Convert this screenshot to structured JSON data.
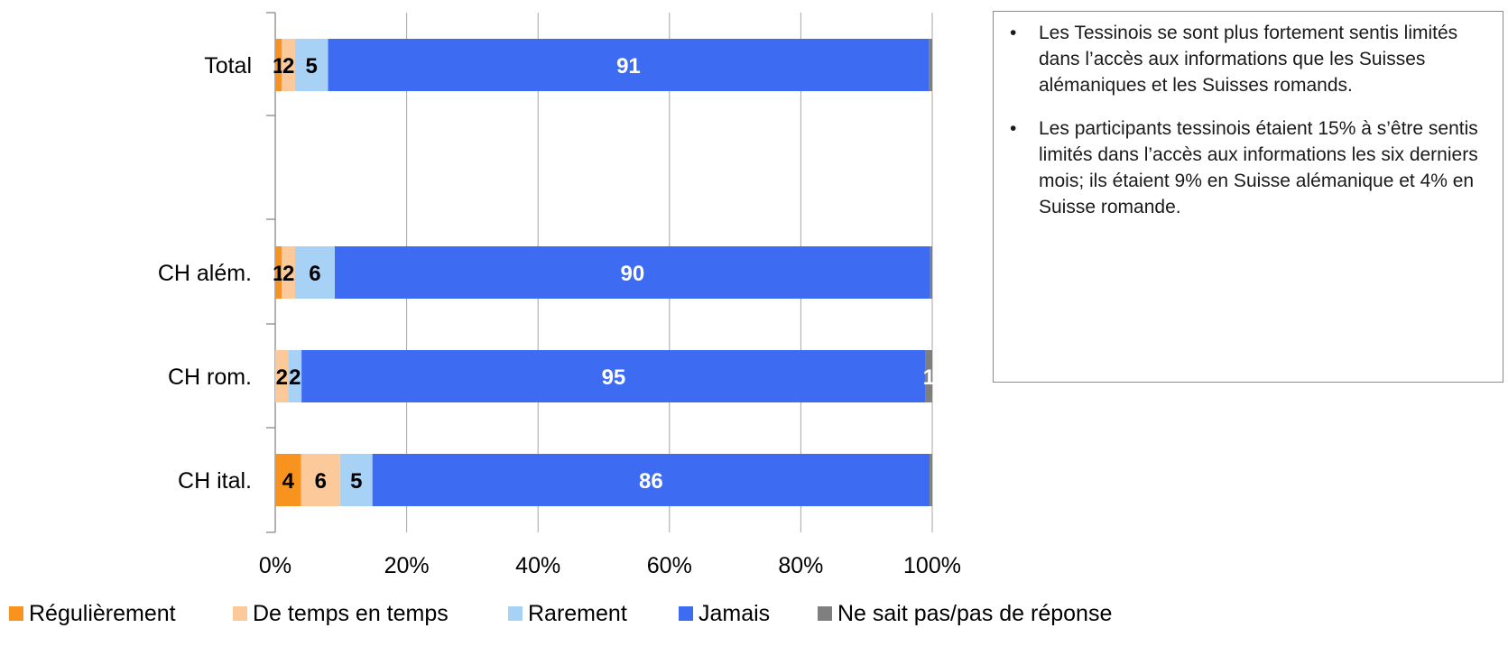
{
  "colors": {
    "Régulièrement": "#f7931e",
    "De temps en temps": "#fbc99a",
    "Rarement": "#a7d1f5",
    "Jamais": "#3d6cf2",
    "Ne sait pas/pas de réponse": "#7f7f7f"
  },
  "chart_data": {
    "type": "bar",
    "orientation": "horizontal",
    "stacked": "percent",
    "title": "",
    "xlabel": "",
    "ylabel": "",
    "xlim": [
      0,
      100
    ],
    "x_ticks": [
      "0%",
      "20%",
      "40%",
      "60%",
      "80%",
      "100%"
    ],
    "grid": true,
    "legend_position": "bottom",
    "categories": [
      "Total",
      "",
      "CH além.",
      "CH rom.",
      "CH ital."
    ],
    "series": [
      {
        "name": "Régulièrement",
        "values": [
          1,
          null,
          1,
          0,
          4
        ],
        "labels": [
          "1",
          "",
          "1",
          "",
          "4"
        ]
      },
      {
        "name": "De temps en temps",
        "values": [
          2,
          null,
          2,
          2,
          6
        ],
        "labels": [
          "2",
          "",
          "2",
          "2",
          "6"
        ]
      },
      {
        "name": "Rarement",
        "values": [
          5,
          null,
          6,
          2,
          5
        ],
        "labels": [
          "5",
          "",
          "6",
          "2",
          "5"
        ]
      },
      {
        "name": "Jamais",
        "values": [
          91,
          null,
          90,
          95,
          86
        ],
        "labels": [
          "91",
          "",
          "90",
          "95",
          "86"
        ]
      },
      {
        "name": "Ne sait pas/pas de réponse",
        "values": [
          0.5,
          null,
          0.3,
          1,
          0.4
        ],
        "labels": [
          "",
          "",
          "",
          "1",
          ""
        ]
      }
    ]
  },
  "notes": [
    "Les Tessinois se sont plus fortement sentis limités dans l’accès aux informations que les Suisses alémaniques et les Suisses romands.",
    "Les participants tessinois étaient 15% à s’être sentis limités dans l’accès aux informations les six derniers mois; ils étaient 9% en Suisse alémanique et 4% en Suisse romande."
  ],
  "note_bullet": "•"
}
